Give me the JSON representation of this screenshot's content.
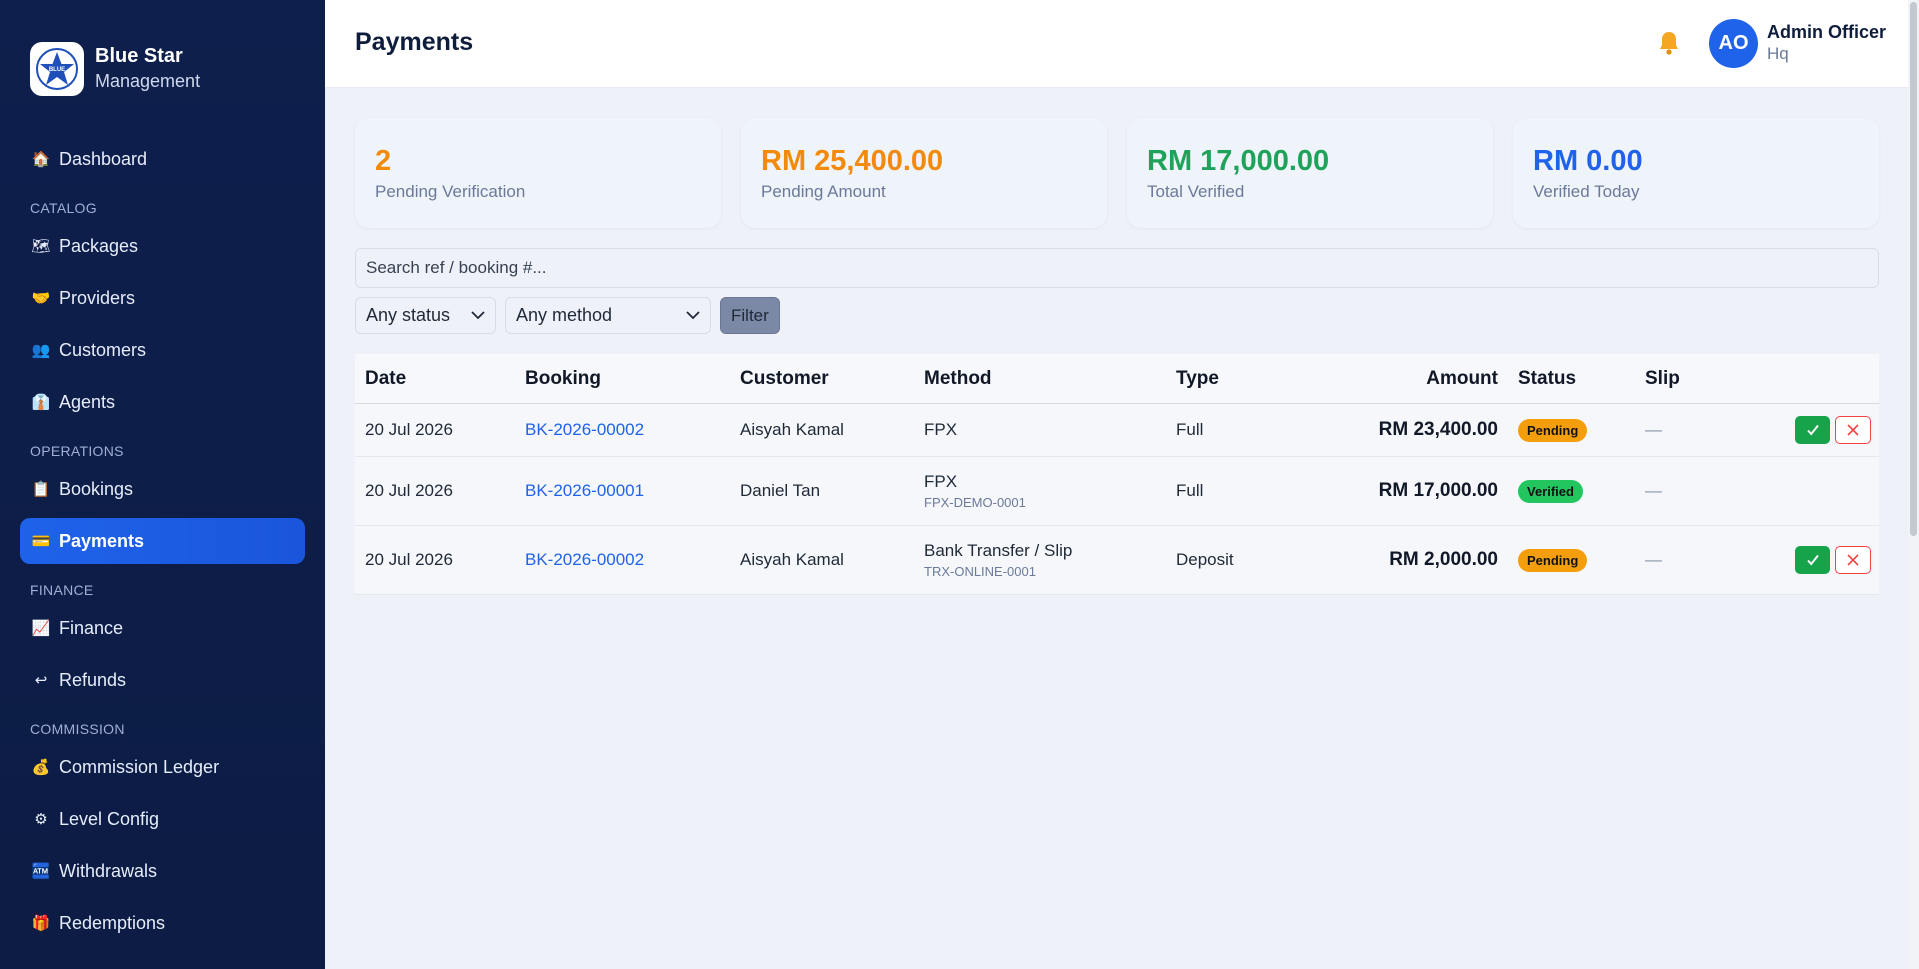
{
  "brand": {
    "name": "Blue Star",
    "sub": "Management"
  },
  "sidebar": {
    "top": [
      {
        "label": "Dashboard",
        "icon": "🏠"
      }
    ],
    "catalog_title": "CATALOG",
    "catalog": [
      {
        "label": "Packages",
        "icon": "🗺"
      },
      {
        "label": "Providers",
        "icon": "🤝"
      },
      {
        "label": "Customers",
        "icon": "👥"
      },
      {
        "label": "Agents",
        "icon": "👔"
      }
    ],
    "operations_title": "OPERATIONS",
    "operations": [
      {
        "label": "Bookings",
        "icon": "📋"
      },
      {
        "label": "Payments",
        "icon": "💳"
      }
    ],
    "finance_title": "FINANCE",
    "finance": [
      {
        "label": "Finance",
        "icon": "📈"
      },
      {
        "label": "Refunds",
        "icon": "↩"
      }
    ],
    "commission_title": "COMMISSION",
    "commission": [
      {
        "label": "Commission Ledger",
        "icon": "💰"
      },
      {
        "label": "Level Config",
        "icon": "⚙"
      },
      {
        "label": "Withdrawals",
        "icon": "🏧"
      },
      {
        "label": "Redemptions",
        "icon": "🎁"
      }
    ]
  },
  "header": {
    "title": "Payments",
    "user_initials": "AO",
    "user_name": "Admin Officer",
    "user_role": "Hq"
  },
  "cards": [
    {
      "value": "2",
      "label": "Pending Verification",
      "color": "#f28b0c"
    },
    {
      "value": "RM 25,400.00",
      "label": "Pending Amount",
      "color": "#f28b0c"
    },
    {
      "value": "RM 17,000.00",
      "label": "Total Verified",
      "color": "#1fa35b"
    },
    {
      "value": "RM 0.00",
      "label": "Verified Today",
      "color": "#1f63ea"
    }
  ],
  "search": {
    "placeholder": "Search ref / booking #..."
  },
  "filters": {
    "status": "Any status",
    "method": "Any method",
    "button": "Filter"
  },
  "table": {
    "headers": {
      "date": "Date",
      "booking": "Booking",
      "customer": "Customer",
      "method": "Method",
      "type": "Type",
      "amount": "Amount",
      "status": "Status",
      "slip": "Slip"
    },
    "rows": [
      {
        "date": "20 Jul 2026",
        "booking": "BK-2026-00002",
        "customer": "Aisyah Kamal",
        "method": "FPX",
        "method_ref": "",
        "type": "Full",
        "amount": "RM 23,400.00",
        "status": "Pending",
        "slip": "—"
      },
      {
        "date": "20 Jul 2026",
        "booking": "BK-2026-00001",
        "customer": "Daniel Tan",
        "method": "FPX",
        "method_ref": "FPX-DEMO-0001",
        "type": "Full",
        "amount": "RM 17,000.00",
        "status": "Verified",
        "slip": "—"
      },
      {
        "date": "20 Jul 2026",
        "booking": "BK-2026-00002",
        "customer": "Aisyah Kamal",
        "method": "Bank Transfer / Slip",
        "method_ref": "TRX-ONLINE-0001",
        "type": "Deposit",
        "amount": "RM 2,000.00",
        "status": "Pending",
        "slip": "—"
      }
    ]
  }
}
